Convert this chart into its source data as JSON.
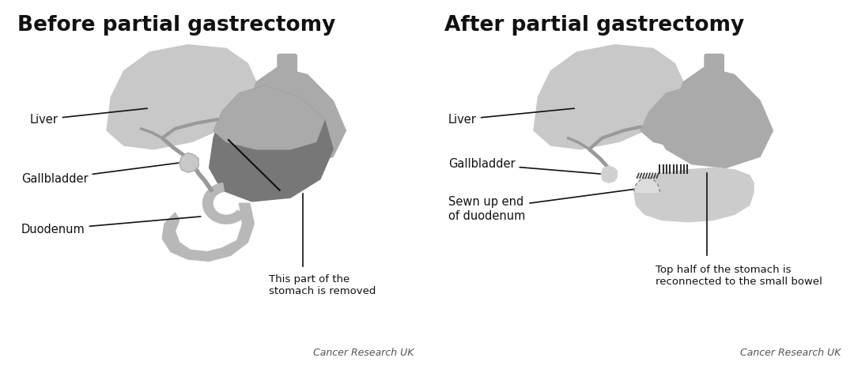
{
  "title_left": "Before partial gastrectomy",
  "title_right": "After partial gastrectomy",
  "title_fontsize": 19,
  "title_fontweight": "bold",
  "label_fontsize": 10.5,
  "credit_fontsize": 9,
  "credit_text": "Cancer Research UK",
  "bg_color": "#ffffff",
  "liver_color": "#c8c8c8",
  "liver_dark_color": "#aaaaaa",
  "stomach_light_color": "#aaaaaa",
  "stomach_removed_color": "#777777",
  "duodenum_color": "#b8b8b8",
  "gallbladder_color": "#bbbbbb",
  "bowel_color": "#c0c0c0",
  "line_color": "#111111",
  "text_color": "#111111",
  "duct_color": "#999999",
  "esoph_color": "#aaaaaa",
  "sewn_color": "#dddddd",
  "small_bowel_color": "#cccccc"
}
